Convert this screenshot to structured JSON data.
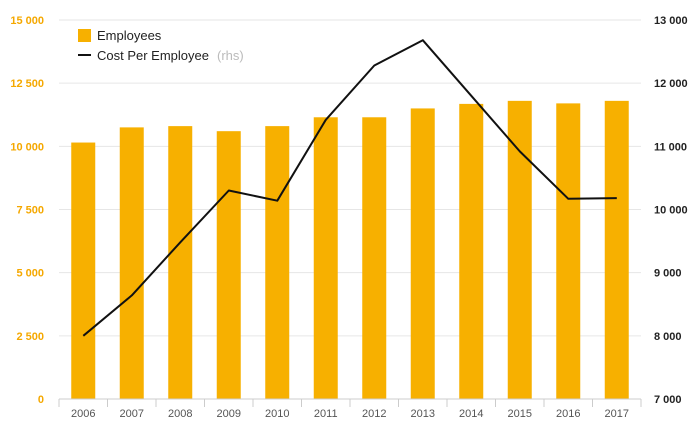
{
  "chart_data": {
    "type": "bar+line",
    "categories": [
      "2006",
      "2007",
      "2008",
      "2009",
      "2010",
      "2011",
      "2012",
      "2013",
      "2014",
      "2015",
      "2016",
      "2017"
    ],
    "series": [
      {
        "name": "Employees",
        "type": "bar",
        "axis": "left",
        "color": "#f7b000",
        "values": [
          10150,
          10750,
          10800,
          10600,
          10800,
          11150,
          11150,
          11500,
          11680,
          11800,
          11700,
          11800
        ]
      },
      {
        "name": "Cost Per Employee",
        "name_suffix": "(rhs)",
        "type": "line",
        "axis": "right",
        "color": "#111111",
        "values": [
          8000,
          8640,
          9480,
          10300,
          10140,
          11420,
          12280,
          12680,
          11800,
          10920,
          10170,
          10180
        ]
      }
    ],
    "left_axis": {
      "min": 0,
      "max": 15000,
      "ticks": [
        "0",
        "2 500",
        "5 000",
        "7 500",
        "10 000",
        "12 500",
        "15 000"
      ],
      "tick_values": [
        0,
        2500,
        5000,
        7500,
        10000,
        12500,
        15000
      ],
      "color": "#f5a800"
    },
    "right_axis": {
      "min": 7000,
      "max": 13000,
      "ticks": [
        "7 000",
        "8 000",
        "9 000",
        "10 000",
        "11 000",
        "12 000",
        "13 000"
      ],
      "tick_values": [
        7000,
        8000,
        9000,
        10000,
        11000,
        12000,
        13000
      ]
    },
    "grid": true,
    "legend_position": "top-left"
  }
}
